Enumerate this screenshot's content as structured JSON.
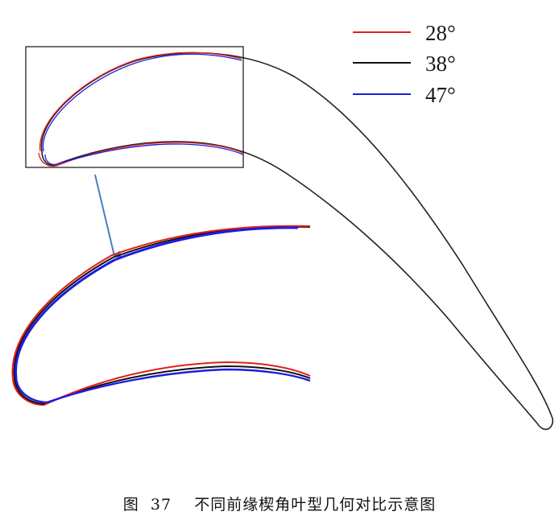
{
  "legend": {
    "items": [
      {
        "label": "28°",
        "color": "#e0201c"
      },
      {
        "label": "38°",
        "color": "#111111"
      },
      {
        "label": "47°",
        "color": "#1c1ce0"
      }
    ]
  },
  "caption": {
    "figure_label": "图",
    "figure_number": "37",
    "text": "不同前缘楔角叶型几何对比示意图"
  },
  "colors": {
    "inset_box": "#111111",
    "arrow": "#4a7fc4",
    "blade_outline": "#111111"
  }
}
